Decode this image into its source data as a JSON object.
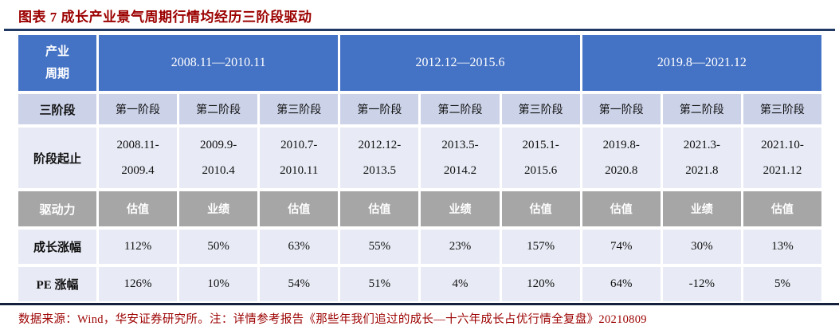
{
  "title": "图表 7  成长产业景气周期行情均经历三阶段驱动",
  "footer": "数据来源：Wind，华安证券研究所。注：详情参考报告《那些年我们追过的成长—十六年成长占优行情全复盘》20210809",
  "table": {
    "corner_label": "产业\n周期",
    "row_labels": {
      "stage": "三阶段",
      "span": "阶段起止",
      "driver": "驱动力",
      "growth": "成长涨幅",
      "pe": "PE 涨幅"
    },
    "periods": [
      {
        "range": "2008.11—2010.11",
        "stages": [
          {
            "name": "第一阶段",
            "span": [
              "2008.11-",
              "2009.4"
            ],
            "driver": "估值",
            "growth": "112%",
            "pe": "126%"
          },
          {
            "name": "第二阶段",
            "span": [
              "2009.9-",
              "2010.4"
            ],
            "driver": "业绩",
            "growth": "50%",
            "pe": "10%"
          },
          {
            "name": "第三阶段",
            "span": [
              "2010.7-",
              "2010.11"
            ],
            "driver": "估值",
            "growth": "63%",
            "pe": "54%"
          }
        ]
      },
      {
        "range": "2012.12—2015.6",
        "stages": [
          {
            "name": "第一阶段",
            "span": [
              "2012.12-",
              "2013.5"
            ],
            "driver": "估值",
            "growth": "55%",
            "pe": "51%"
          },
          {
            "name": "第二阶段",
            "span": [
              "2013.5-",
              "2014.2"
            ],
            "driver": "业绩",
            "growth": "23%",
            "pe": "4%"
          },
          {
            "name": "第三阶段",
            "span": [
              "2015.1-",
              "2015.6"
            ],
            "driver": "估值",
            "growth": "157%",
            "pe": "120%"
          }
        ]
      },
      {
        "range": "2019.8—2021.12",
        "stages": [
          {
            "name": "第一阶段",
            "span": [
              "2019.8-",
              "2020.8"
            ],
            "driver": "估值",
            "growth": "74%",
            "pe": "64%"
          },
          {
            "name": "第二阶段",
            "span": [
              "2021.3-",
              "2021.8"
            ],
            "driver": "业绩",
            "growth": "30%",
            "pe": "-12%"
          },
          {
            "name": "第三阶段",
            "span": [
              "2021.10-",
              "2021.12"
            ],
            "driver": "估值",
            "growth": "13%",
            "pe": "5%"
          }
        ]
      }
    ]
  },
  "colors": {
    "header_blue": "#4472C4",
    "stage_row_periwinkle": "#CCD3E9",
    "light_row": "#E8EBF5",
    "driver_gray": "#A6A6A6",
    "caption_red": "#9C0000",
    "rule_navy": "#1F3864"
  }
}
